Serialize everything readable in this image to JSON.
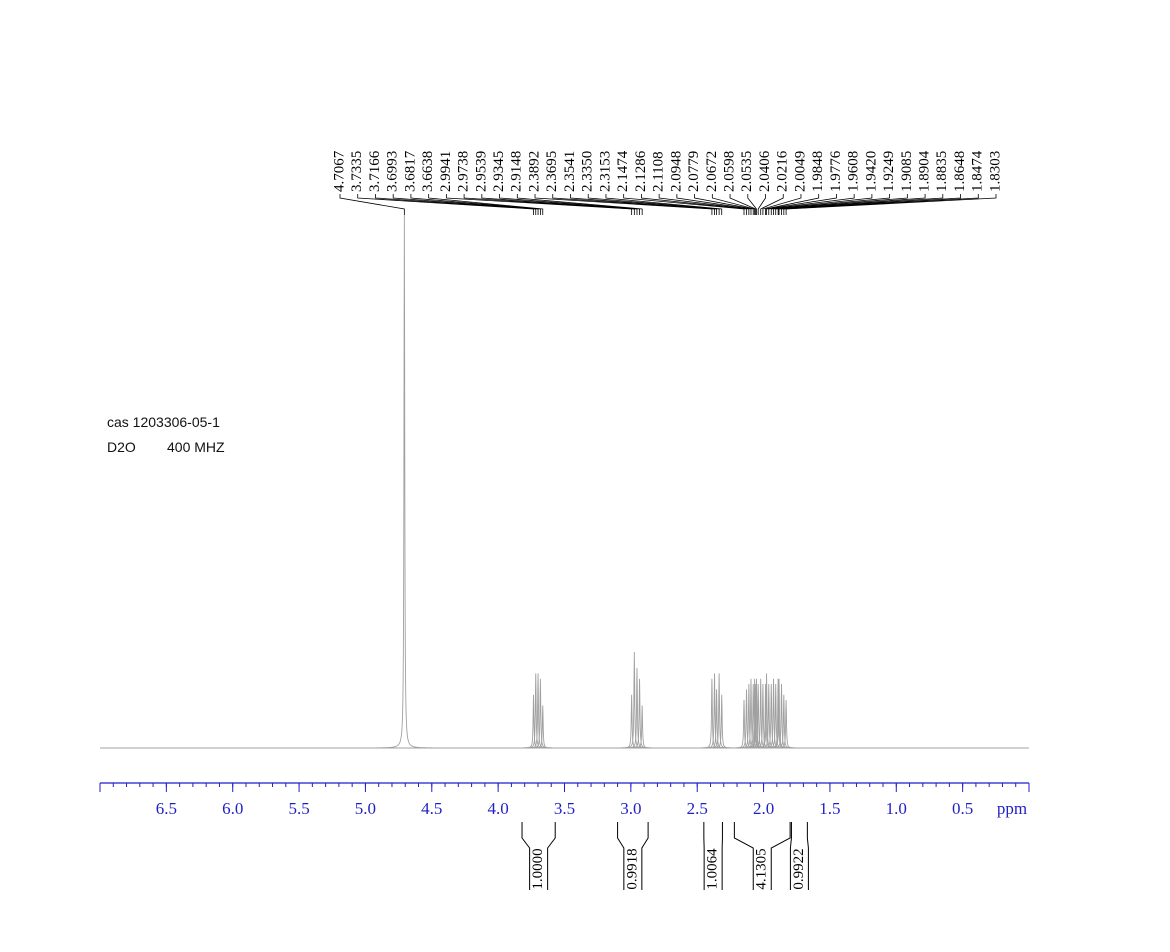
{
  "chart_data": {
    "type": "nmr",
    "sample": "cas 1203306-05-1",
    "solvent": "D2O",
    "frequency": "400 MHZ",
    "x_label": "ppm",
    "xlim": [
      7.0,
      0.0
    ],
    "ylim": [
      0,
      100
    ],
    "xticks": [
      6.5,
      {
        "value": 6,
        "label": "6.0"
      },
      5.5,
      {
        "value": 5,
        "label": "5.0"
      },
      4.5,
      {
        "value": 4,
        "label": "4.0"
      },
      3.5,
      {
        "value": 3,
        "label": "3.0"
      },
      2.5,
      {
        "value": 2,
        "label": "2.0"
      },
      1.5,
      {
        "value": 1,
        "label": "1.0"
      },
      0.5
    ],
    "spectrum_color": "#a0a0a0",
    "axis_color": "#1f1fc8",
    "peaks": [
      {
        "shift": 4.7067,
        "height": 100
      },
      {
        "shift": 3.7335,
        "height": 10
      },
      {
        "shift": 3.7166,
        "height": 14
      },
      {
        "shift": 3.6993,
        "height": 14
      },
      {
        "shift": 3.6817,
        "height": 13
      },
      {
        "shift": 3.6638,
        "height": 8
      },
      {
        "shift": 2.9941,
        "height": 10
      },
      {
        "shift": 2.9738,
        "height": 18
      },
      {
        "shift": 2.9539,
        "height": 15
      },
      {
        "shift": 2.9345,
        "height": 13
      },
      {
        "shift": 2.9148,
        "height": 8
      },
      {
        "shift": 2.3892,
        "height": 13
      },
      {
        "shift": 2.3695,
        "height": 14
      },
      {
        "shift": 2.3541,
        "height": 11
      },
      {
        "shift": {
          "value": 2.335,
          "label": "2.3350"
        },
        "height": 14
      },
      {
        "shift": 2.3153,
        "height": 10
      },
      {
        "shift": 2.1474,
        "height": 9
      },
      {
        "shift": 2.1286,
        "height": 11
      },
      {
        "shift": 2.1108,
        "height": 12
      },
      {
        "shift": 2.0948,
        "height": 13
      },
      {
        "shift": 2.0779,
        "height": 12
      },
      {
        "shift": 2.0672,
        "height": 13
      },
      {
        "shift": 2.0598,
        "height": 12
      },
      {
        "shift": 2.0535,
        "height": 13
      },
      {
        "shift": 2.0406,
        "height": 12
      },
      {
        "shift": 2.0216,
        "height": 13
      },
      {
        "shift": 2.0049,
        "height": 12
      },
      {
        "shift": 1.9848,
        "height": 12
      },
      {
        "shift": 1.9776,
        "height": 14
      },
      {
        "shift": 1.9608,
        "height": 12
      },
      {
        "shift": {
          "value": 1.942,
          "label": "1.9420"
        },
        "height": 12
      },
      {
        "shift": 1.9249,
        "height": 13
      },
      {
        "shift": 1.9085,
        "height": 12
      },
      {
        "shift": 1.8904,
        "height": 13
      },
      {
        "shift": 1.8835,
        "height": 13
      },
      {
        "shift": 1.8648,
        "height": 12
      },
      {
        "shift": 1.8474,
        "height": 10
      },
      {
        "shift": 1.8303,
        "height": 9
      }
    ],
    "integrals": [
      {
        "from": 3.82,
        "to": 3.57,
        "value": {
          "value": 1,
          "label": "1.0000"
        }
      },
      {
        "from": 3.1,
        "to": 2.87,
        "value": 0.9918
      },
      {
        "from": 2.45,
        "to": 2.31,
        "value": 1.0064
      },
      {
        "from": 2.22,
        "to": 1.8,
        "value": 4.1305
      },
      {
        "from": 1.79,
        "to": 1.67,
        "value": 0.9922
      }
    ]
  }
}
